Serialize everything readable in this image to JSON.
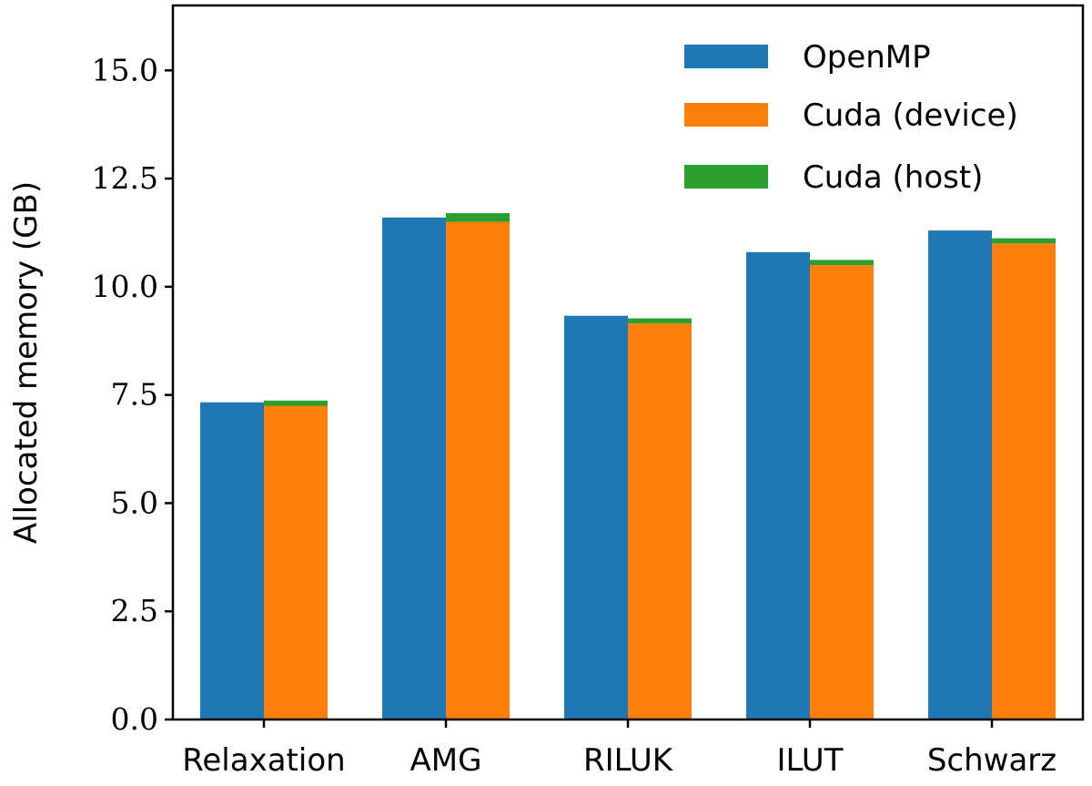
{
  "chart_data": {
    "type": "bar",
    "stacked_grouped": true,
    "categories": [
      "Relaxation",
      "AMG",
      "RILUK",
      "ILUT",
      "Schwarz"
    ],
    "series": [
      {
        "name": "OpenMP",
        "group": "openmp",
        "values": [
          7.33,
          11.6,
          9.33,
          10.8,
          11.3
        ],
        "color": "#1f77b4"
      },
      {
        "name": "Cuda (device)",
        "group": "cuda",
        "values": [
          7.25,
          11.5,
          9.15,
          10.5,
          11.0
        ],
        "color": "#ff7f0e"
      },
      {
        "name": "Cuda (host)",
        "group": "cuda",
        "values": [
          0.12,
          0.2,
          0.12,
          0.12,
          0.12
        ],
        "color": "#2ca02c"
      }
    ],
    "xlabel": "",
    "ylabel": "Allocated memory (GB)",
    "ylim": [
      0,
      16.5
    ],
    "yticks": [
      0.0,
      2.5,
      5.0,
      7.5,
      10.0,
      12.5,
      15.0
    ],
    "ytick_labels": [
      "0.0",
      "2.5",
      "5.0",
      "7.5",
      "10.0",
      "12.5",
      "15.0"
    ],
    "grid": false,
    "legend_position": "top-right"
  }
}
